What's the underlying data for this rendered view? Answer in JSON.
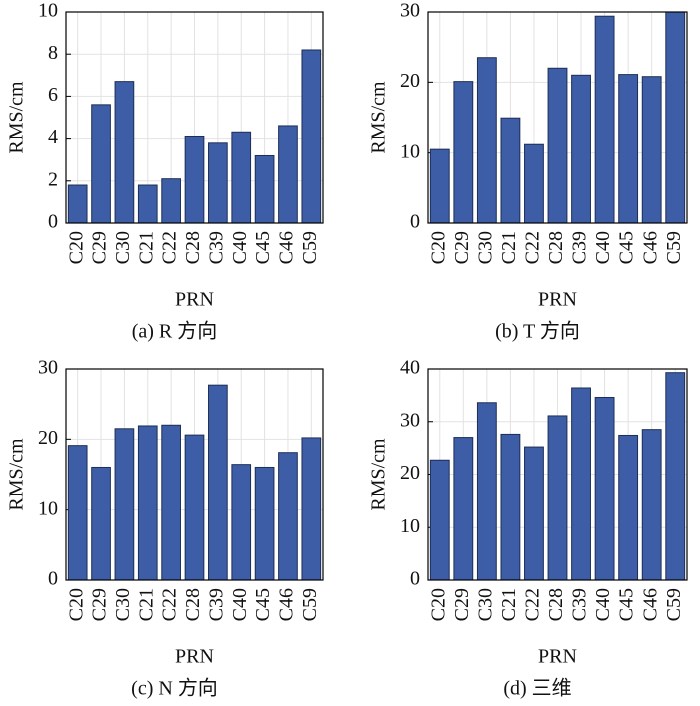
{
  "chart_data": [
    {
      "type": "bar",
      "title": "(a) R 方向",
      "x_label": "PRN",
      "y_label": "RMS/cm",
      "categories": [
        "C20",
        "C29",
        "C30",
        "C21",
        "C22",
        "C28",
        "C39",
        "C40",
        "C45",
        "C46",
        "C59"
      ],
      "values": [
        1.8,
        5.6,
        6.7,
        1.8,
        2.1,
        4.1,
        3.8,
        4.3,
        3.2,
        4.6,
        8.2
      ],
      "color": "#3d5da6",
      "ylim": [
        0,
        10
      ],
      "yticks": [
        0,
        2,
        4,
        6,
        8,
        10
      ],
      "grid": true
    },
    {
      "type": "bar",
      "title": "(b) T 方向",
      "x_label": "PRN",
      "y_label": "RMS/cm",
      "categories": [
        "C20",
        "C29",
        "C30",
        "C21",
        "C22",
        "C28",
        "C39",
        "C40",
        "C45",
        "C46",
        "C59"
      ],
      "values": [
        10.5,
        20.1,
        23.5,
        14.9,
        11.2,
        22.0,
        21.0,
        29.4,
        21.1,
        20.8,
        30
      ],
      "color": "#3d5da6",
      "ylim": [
        0,
        30
      ],
      "yticks": [
        0,
        10,
        20,
        30
      ],
      "grid": true
    },
    {
      "type": "bar",
      "title": "(c) N 方向",
      "x_label": "PRN",
      "y_label": "RMS/cm",
      "categories": [
        "C20",
        "C29",
        "C30",
        "C21",
        "C22",
        "C28",
        "C39",
        "C40",
        "C45",
        "C46",
        "C59"
      ],
      "values": [
        19.1,
        16.0,
        21.5,
        21.9,
        22.0,
        20.6,
        27.7,
        16.4,
        16.0,
        18.1,
        20.2
      ],
      "color": "#3d5da6",
      "ylim": [
        0,
        30
      ],
      "yticks": [
        0,
        10,
        20,
        30
      ],
      "grid": true
    },
    {
      "type": "bar",
      "title": "(d) 三维",
      "x_label": "PRN",
      "y_label": "RMS/cm",
      "categories": [
        "C20",
        "C29",
        "C30",
        "C21",
        "C22",
        "C28",
        "C39",
        "C40",
        "C45",
        "C46",
        "C59"
      ],
      "values": [
        22.7,
        27.0,
        33.6,
        27.6,
        25.2,
        31.1,
        36.4,
        34.6,
        27.4,
        28.5,
        39.3
      ],
      "color": "#3d5da6",
      "ylim": [
        0,
        40
      ],
      "yticks": [
        0,
        10,
        20,
        30,
        40
      ],
      "grid": true
    }
  ]
}
